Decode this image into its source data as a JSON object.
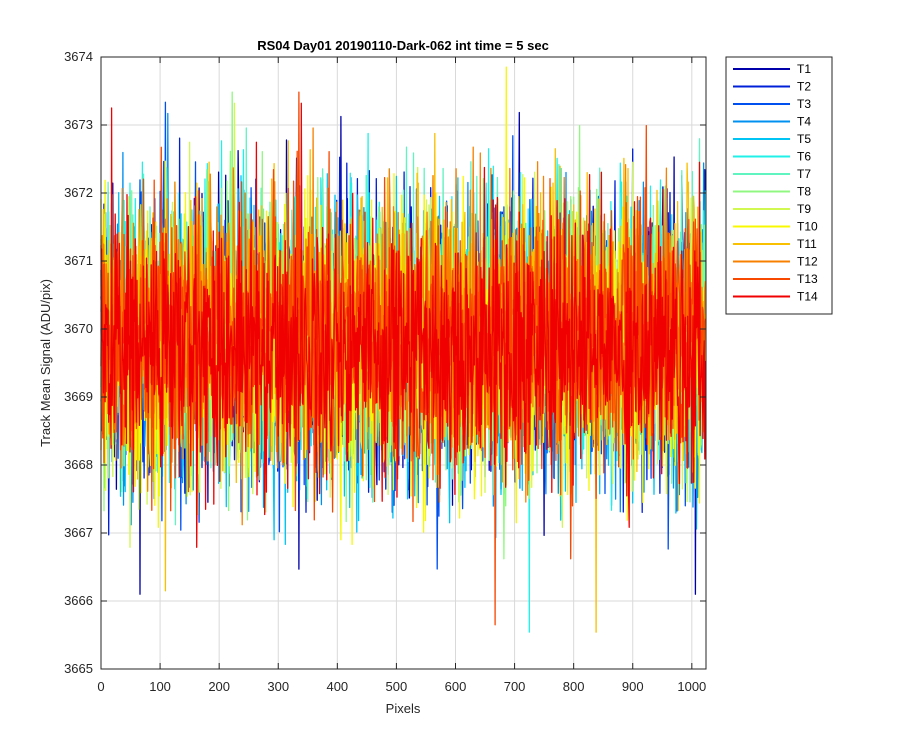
{
  "chart_data": {
    "type": "line",
    "title": "RS04 Day01 20190110-Dark-062 int time = 5 sec",
    "xlabel": "Pixels",
    "ylabel": "Track Mean Signal (ADU/pix)",
    "xlim": [
      0,
      1024
    ],
    "ylim": [
      3665,
      3674
    ],
    "xticks": [
      0,
      100,
      200,
      300,
      400,
      500,
      600,
      700,
      800,
      900,
      1000
    ],
    "yticks": [
      3665,
      3666,
      3667,
      3668,
      3669,
      3670,
      3671,
      3672,
      3673,
      3674
    ],
    "grid": true,
    "legend_placement": "outside-top-right",
    "series_count": 14,
    "points_per_series": 1024,
    "series_stats": {
      "mean_range": [
        3669.6,
        3670.1
      ],
      "noise_range": "approximately 3666 to 3673 ADU/pix"
    },
    "notable_points": [
      {
        "series": "T10",
        "x": 686,
        "y": 3673.85
      },
      {
        "series": "T13",
        "x": 667,
        "y": 3665.65
      },
      {
        "series": "T14",
        "x": 18,
        "y": 3673.25
      },
      {
        "series": "T1",
        "x": 66,
        "y": 3666.1
      },
      {
        "series": "T1",
        "x": 1006,
        "y": 3666.1
      },
      {
        "series": "T11",
        "x": 109,
        "y": 3666.15
      }
    ],
    "series": [
      {
        "name": "T1",
        "color": "#0000aa"
      },
      {
        "name": "T2",
        "color": "#0020d8"
      },
      {
        "name": "T3",
        "color": "#0050f0"
      },
      {
        "name": "T4",
        "color": "#0090f0"
      },
      {
        "name": "T5",
        "color": "#00c4f4"
      },
      {
        "name": "T6",
        "color": "#20f0e8"
      },
      {
        "name": "T7",
        "color": "#60f4c0"
      },
      {
        "name": "T8",
        "color": "#90f880"
      },
      {
        "name": "T9",
        "color": "#d0f850"
      },
      {
        "name": "T10",
        "color": "#f8f800"
      },
      {
        "name": "T11",
        "color": "#f8c000"
      },
      {
        "name": "T12",
        "color": "#f88000"
      },
      {
        "name": "T13",
        "color": "#f84800"
      },
      {
        "name": "T14",
        "color": "#f00000"
      }
    ]
  }
}
